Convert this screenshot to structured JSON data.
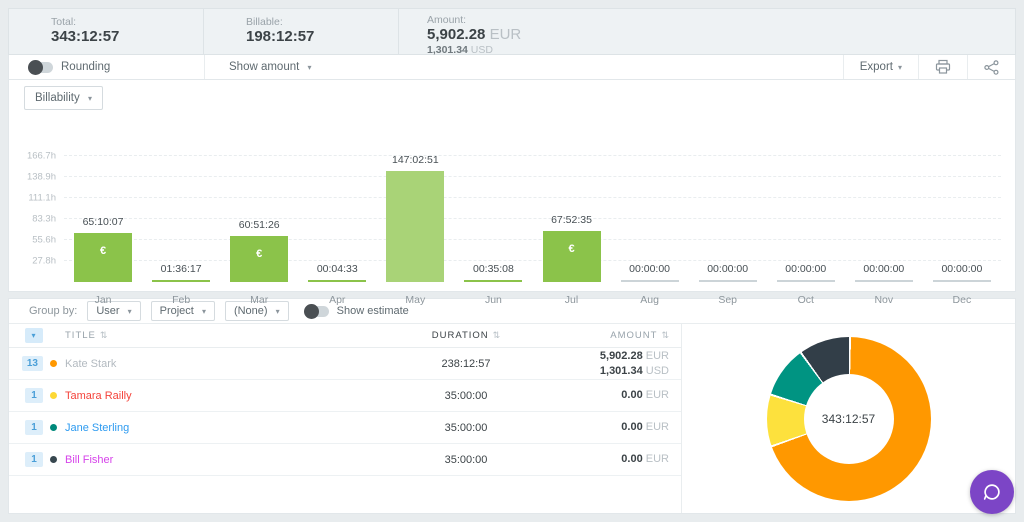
{
  "summary": {
    "total_label": "Total:",
    "total_value": "343:12:57",
    "billable_label": "Billable:",
    "billable_value": "198:12:57",
    "amount_label": "Amount:",
    "amount_value": "5,902.28",
    "amount_currency": "EUR",
    "amount_secondary_value": "1,301.34",
    "amount_secondary_currency": "USD"
  },
  "toolbar": {
    "rounding_label": "Rounding",
    "show_amount_label": "Show amount",
    "export_label": "Export"
  },
  "chart_filter": {
    "label": "Billability"
  },
  "chart_data": {
    "type": "bar",
    "title": "Billability",
    "categories": [
      "Jan",
      "Feb",
      "Mar",
      "Apr",
      "May",
      "Jun",
      "Jul",
      "Aug",
      "Sep",
      "Oct",
      "Nov",
      "Dec"
    ],
    "value_labels": [
      "65:10:07",
      "01:36:17",
      "60:51:26",
      "00:04:33",
      "147:02:51",
      "00:35:08",
      "67:52:35",
      "00:00:00",
      "00:00:00",
      "00:00:00",
      "00:00:00",
      "00:00:00"
    ],
    "hours": [
      65.17,
      1.6,
      60.86,
      0.08,
      147.05,
      0.59,
      67.88,
      0,
      0,
      0,
      0,
      0
    ],
    "bar_styles": [
      "billable",
      "billable",
      "billable",
      "billable",
      "nonbillable",
      "billable",
      "billable",
      "zero",
      "zero",
      "zero",
      "zero",
      "zero"
    ],
    "euro_icon": [
      true,
      false,
      true,
      false,
      false,
      false,
      true,
      false,
      false,
      false,
      false,
      false
    ],
    "ylabel_ticks": [
      "27.8h",
      "55.6h",
      "83.3h",
      "111.1h",
      "138.9h",
      "166.7h"
    ],
    "ylim": [
      0,
      166.7
    ],
    "grid": true,
    "colors": {
      "billable": "#8bc34a",
      "nonbillable": "#a9d377",
      "zero": "#ccd4d8"
    }
  },
  "group_bar": {
    "label": "Group by:",
    "dropdowns": [
      "User",
      "Project",
      "(None)"
    ],
    "show_estimate_label": "Show estimate"
  },
  "table": {
    "headers": {
      "title": "TITLE",
      "duration": "DURATION",
      "amount": "AMOUNT"
    },
    "sort_icon": "⇅",
    "rows": [
      {
        "count": "13",
        "dot_color": "#ff9800",
        "name": "Kate Stark",
        "name_color": "#b3bac0",
        "duration": "238:12:57",
        "amounts": [
          {
            "value": "5,902.28",
            "currency": "EUR"
          },
          {
            "value": "1,301.34",
            "currency": "USD"
          }
        ]
      },
      {
        "count": "1",
        "dot_color": "#fdd835",
        "name": "Tamara Railly",
        "name_color": "#f4433b",
        "duration": "35:00:00",
        "amounts": [
          {
            "value": "0.00",
            "currency": "EUR"
          }
        ]
      },
      {
        "count": "1",
        "dot_color": "#00897b",
        "name": "Jane Sterling",
        "name_color": "#2e9bf0",
        "duration": "35:00:00",
        "amounts": [
          {
            "value": "0.00",
            "currency": "EUR"
          }
        ]
      },
      {
        "count": "1",
        "dot_color": "#37474f",
        "name": "Bill Fisher",
        "name_color": "#d643ea",
        "duration": "35:00:00",
        "amounts": [
          {
            "value": "0.00",
            "currency": "EUR"
          }
        ]
      }
    ]
  },
  "donut_chart": {
    "type": "pie",
    "center_label": "343:12:57",
    "slices": [
      {
        "name": "Kate Stark",
        "pct": 69.4,
        "color": "#ff9800"
      },
      {
        "name": "Tamara Railly",
        "pct": 10.2,
        "color": "#fde13d"
      },
      {
        "name": "Jane Sterling",
        "pct": 10.2,
        "color": "#009482"
      },
      {
        "name": "Bill Fisher",
        "pct": 10.2,
        "color": "#323e48"
      }
    ]
  },
  "chart_euro_symbol": "€",
  "caret_symbol": "▾"
}
